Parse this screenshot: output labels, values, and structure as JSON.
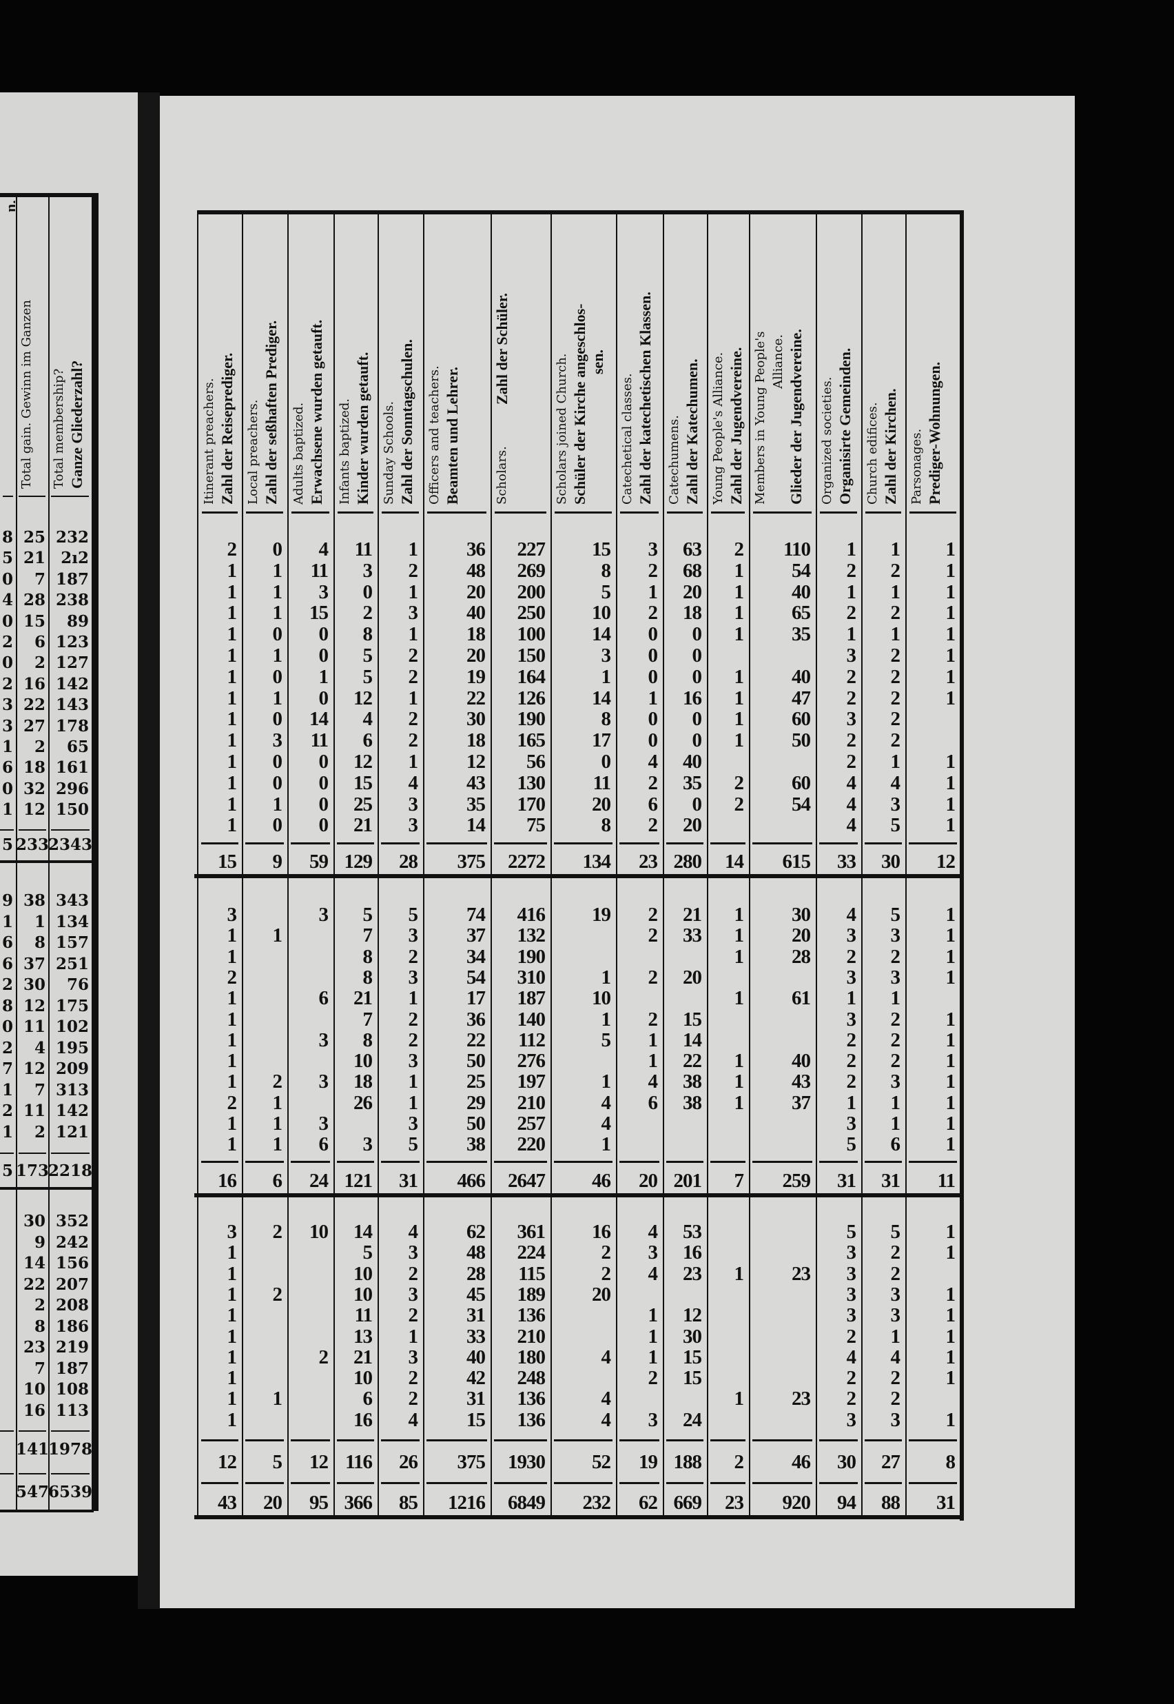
{
  "left_page": {
    "columns": [
      {
        "en": "",
        "de": "n."
      },
      {
        "en": "Total gain. Gewinn im Ganzen",
        "de": ""
      },
      {
        "en": "Total membership?",
        "de": "Ganze Gliederzahl?"
      }
    ],
    "sections": [
      {
        "rows": [
          [
            "8",
            "25",
            "232"
          ],
          [
            "5",
            "21",
            "2ı2"
          ],
          [
            "0",
            "7",
            "187"
          ],
          [
            "4",
            "28",
            "238"
          ],
          [
            "0",
            "15",
            "89"
          ],
          [
            "2",
            "6",
            "123"
          ],
          [
            "0",
            "2",
            "127"
          ],
          [
            "2",
            "16",
            "142"
          ],
          [
            "3",
            "22",
            "143"
          ],
          [
            "3",
            "27",
            "178"
          ],
          [
            "1",
            "2",
            "65"
          ],
          [
            "6",
            "18",
            "161"
          ],
          [
            "0",
            "32",
            "296"
          ],
          [
            "1",
            "12",
            "150"
          ]
        ],
        "totals": [
          [
            "5",
            "233",
            "2343"
          ]
        ]
      },
      {
        "rows": [
          [
            "9",
            "38",
            "343"
          ],
          [
            "1",
            "1",
            "134"
          ],
          [
            "6",
            "8",
            "157"
          ],
          [
            "6",
            "37",
            "251"
          ],
          [
            "2",
            "30",
            "76"
          ],
          [
            "8",
            "12",
            "175"
          ],
          [
            "0",
            "11",
            "102"
          ],
          [
            "2",
            "4",
            "195"
          ],
          [
            "7",
            "12",
            "209"
          ],
          [
            "1",
            "7",
            "313"
          ],
          [
            "2",
            "11",
            "142"
          ],
          [
            "1",
            "2",
            "121"
          ]
        ],
        "totals": [
          [
            "5",
            "173",
            "2218"
          ]
        ]
      },
      {
        "rows": [
          [
            "",
            "30",
            "352"
          ],
          [
            "",
            "9",
            "242"
          ],
          [
            "",
            "14",
            "156"
          ],
          [
            "",
            "22",
            "207"
          ],
          [
            "",
            "2",
            "208"
          ],
          [
            "",
            "8",
            "186"
          ],
          [
            "",
            "23",
            "219"
          ],
          [
            "",
            "7",
            "187"
          ],
          [
            "",
            "10",
            "108"
          ],
          [
            "",
            "16",
            "113"
          ]
        ],
        "totals": [
          [
            "",
            "141",
            "1978"
          ],
          [
            "",
            "547",
            "6539"
          ]
        ]
      }
    ]
  },
  "right_table": {
    "columns": [
      {
        "en": "Itinerant preachers.",
        "de": "Zahl der Reiseprediger."
      },
      {
        "en": "Local preachers.",
        "de": "Zahl der seßhaften Prediger."
      },
      {
        "en": "Adults baptized.",
        "de": "Erwachsene wurden getauft."
      },
      {
        "en": "Infants baptized.",
        "de": "Kinder wurden getauft."
      },
      {
        "en": "Sunday Schools.",
        "de": "Zahl der Sonntagschulen."
      },
      {
        "en": "Officers and teachers.",
        "de": "Beamten und Lehrer."
      },
      {
        "en": "Scholars.",
        "de": "Zahl der Schüler."
      },
      {
        "en": "Scholars joined Church.",
        "de": "Schüler der Kirche angeschlos-",
        "de2": "sen."
      },
      {
        "en": "Catechetical classes.",
        "de": "Zahl der katechetischen Klassen."
      },
      {
        "en": "Catechumens.",
        "de": "Zahl der Katechumen."
      },
      {
        "en": "Young People's Alliance.",
        "de": "Zahl der Jugendvereine."
      },
      {
        "en": "Members in Young People's",
        "en2": "Alliance.",
        "de": "Glieder der Jugendvereine."
      },
      {
        "en": "Organized societies.",
        "de": "Organisirte Gemeinden."
      },
      {
        "en": "Church edifices.",
        "de": "Zahl der Kirchen."
      },
      {
        "en": "Parsonages.",
        "de": "Prediger-Wohnungen."
      }
    ],
    "sections": [
      {
        "rows": [
          [
            "2",
            "0",
            "4",
            "11",
            "1",
            "36",
            "227",
            "15",
            "3",
            "63",
            "2",
            "110",
            "1",
            "1",
            "1"
          ],
          [
            "1",
            "1",
            "11",
            "3",
            "2",
            "48",
            "269",
            "8",
            "2",
            "68",
            "1",
            "54",
            "2",
            "2",
            "1"
          ],
          [
            "1",
            "1",
            "3",
            "0",
            "1",
            "20",
            "200",
            "5",
            "1",
            "20",
            "1",
            "40",
            "1",
            "1",
            "1"
          ],
          [
            "1",
            "1",
            "15",
            "2",
            "3",
            "40",
            "250",
            "10",
            "2",
            "18",
            "1",
            "65",
            "2",
            "2",
            "1"
          ],
          [
            "1",
            "0",
            "0",
            "8",
            "1",
            "18",
            "100",
            "14",
            "0",
            "0",
            "1",
            "35",
            "1",
            "1",
            "1"
          ],
          [
            "1",
            "1",
            "0",
            "5",
            "2",
            "20",
            "150",
            "3",
            "0",
            "0",
            "",
            "",
            "3",
            "2",
            "1"
          ],
          [
            "1",
            "0",
            "1",
            "5",
            "2",
            "19",
            "164",
            "1",
            "0",
            "0",
            "1",
            "40",
            "2",
            "2",
            "1"
          ],
          [
            "1",
            "1",
            "0",
            "12",
            "1",
            "22",
            "126",
            "14",
            "1",
            "16",
            "1",
            "47",
            "2",
            "2",
            "1"
          ],
          [
            "1",
            "0",
            "14",
            "4",
            "2",
            "30",
            "190",
            "8",
            "0",
            "0",
            "1",
            "60",
            "3",
            "2",
            ""
          ],
          [
            "1",
            "3",
            "11",
            "6",
            "2",
            "18",
            "165",
            "17",
            "0",
            "0",
            "1",
            "50",
            "2",
            "2",
            ""
          ],
          [
            "1",
            "0",
            "0",
            "12",
            "1",
            "12",
            "56",
            "0",
            "4",
            "40",
            "",
            "",
            "2",
            "1",
            "1"
          ],
          [
            "1",
            "0",
            "0",
            "15",
            "4",
            "43",
            "130",
            "11",
            "2",
            "35",
            "2",
            "60",
            "4",
            "4",
            "1"
          ],
          [
            "1",
            "1",
            "0",
            "25",
            "3",
            "35",
            "170",
            "20",
            "6",
            "0",
            "2",
            "54",
            "4",
            "3",
            "1"
          ],
          [
            "1",
            "0",
            "0",
            "21",
            "3",
            "14",
            "75",
            "8",
            "2",
            "20",
            "",
            "",
            "4",
            "5",
            "1"
          ]
        ],
        "totals": [
          [
            "15",
            "9",
            "59",
            "129",
            "28",
            "375",
            "2272",
            "134",
            "23",
            "280",
            "14",
            "615",
            "33",
            "30",
            "12"
          ]
        ]
      },
      {
        "rows": [
          [
            "3",
            "",
            "3",
            "5",
            "5",
            "74",
            "416",
            "19",
            "2",
            "21",
            "1",
            "30",
            "4",
            "5",
            "1"
          ],
          [
            "1",
            "1",
            "",
            "7",
            "3",
            "37",
            "132",
            "",
            "2",
            "33",
            "1",
            "20",
            "3",
            "3",
            "1"
          ],
          [
            "1",
            "",
            "",
            "8",
            "2",
            "34",
            "190",
            "",
            "",
            "",
            "1",
            "28",
            "2",
            "2",
            "1"
          ],
          [
            "2",
            "",
            "",
            "8",
            "3",
            "54",
            "310",
            "1",
            "2",
            "20",
            "",
            "",
            "3",
            "3",
            "1"
          ],
          [
            "1",
            "",
            "6",
            "21",
            "1",
            "17",
            "187",
            "10",
            "",
            "",
            "1",
            "61",
            "1",
            "1",
            ""
          ],
          [
            "1",
            "",
            "",
            "7",
            "2",
            "36",
            "140",
            "1",
            "2",
            "15",
            "",
            "",
            "3",
            "2",
            "1"
          ],
          [
            "1",
            "",
            "3",
            "8",
            "2",
            "22",
            "112",
            "5",
            "1",
            "14",
            "",
            "",
            "2",
            "2",
            "1"
          ],
          [
            "1",
            "",
            "",
            "10",
            "3",
            "50",
            "276",
            "",
            "1",
            "22",
            "1",
            "40",
            "2",
            "2",
            "1"
          ],
          [
            "1",
            "2",
            "3",
            "18",
            "1",
            "25",
            "197",
            "1",
            "4",
            "38",
            "1",
            "43",
            "2",
            "3",
            "1"
          ],
          [
            "2",
            "1",
            "",
            "26",
            "1",
            "29",
            "210",
            "4",
            "6",
            "38",
            "1",
            "37",
            "1",
            "1",
            "1"
          ],
          [
            "1",
            "1",
            "3",
            "",
            "3",
            "50",
            "257",
            "4",
            "",
            "",
            "",
            "",
            "3",
            "1",
            "1"
          ],
          [
            "1",
            "1",
            "6",
            "3",
            "5",
            "38",
            "220",
            "1",
            "",
            "",
            "",
            "",
            "5",
            "6",
            "1"
          ]
        ],
        "totals": [
          [
            "16",
            "6",
            "24",
            "121",
            "31",
            "466",
            "2647",
            "46",
            "20",
            "201",
            "7",
            "259",
            "31",
            "31",
            "11"
          ]
        ]
      },
      {
        "rows": [
          [
            "3",
            "2",
            "10",
            "14",
            "4",
            "62",
            "361",
            "16",
            "4",
            "53",
            "",
            "",
            "5",
            "5",
            "1"
          ],
          [
            "1",
            "",
            "",
            "5",
            "3",
            "48",
            "224",
            "2",
            "3",
            "16",
            "",
            "",
            "3",
            "2",
            "1"
          ],
          [
            "1",
            "",
            "",
            "10",
            "2",
            "28",
            "115",
            "2",
            "4",
            "23",
            "1",
            "23",
            "3",
            "2",
            ""
          ],
          [
            "1",
            "2",
            "",
            "10",
            "3",
            "45",
            "189",
            "20",
            "",
            "",
            "",
            "",
            "3",
            "3",
            "1"
          ],
          [
            "1",
            "",
            "",
            "11",
            "2",
            "31",
            "136",
            "",
            "1",
            "12",
            "",
            "",
            "3",
            "3",
            "1"
          ],
          [
            "1",
            "",
            "",
            "13",
            "1",
            "33",
            "210",
            "",
            "1",
            "30",
            "",
            "",
            "2",
            "1",
            "1"
          ],
          [
            "1",
            "",
            "2",
            "21",
            "3",
            "40",
            "180",
            "4",
            "1",
            "15",
            "",
            "",
            "4",
            "4",
            "1"
          ],
          [
            "1",
            "",
            "",
            "10",
            "2",
            "42",
            "248",
            "",
            "2",
            "15",
            "",
            "",
            "2",
            "2",
            "1"
          ],
          [
            "1",
            "1",
            "",
            "6",
            "2",
            "31",
            "136",
            "4",
            "",
            "",
            "1",
            "23",
            "2",
            "2",
            ""
          ],
          [
            "1",
            "",
            "",
            "16",
            "4",
            "15",
            "136",
            "4",
            "3",
            "24",
            "",
            "",
            "3",
            "3",
            "1"
          ]
        ],
        "totals": [
          [
            "12",
            "5",
            "12",
            "116",
            "26",
            "375",
            "1930",
            "52",
            "19",
            "188",
            "2",
            "46",
            "30",
            "27",
            "8"
          ],
          [
            "43",
            "20",
            "95",
            "366",
            "85",
            "1216",
            "6849",
            "232",
            "62",
            "669",
            "23",
            "920",
            "94",
            "88",
            "31"
          ]
        ]
      }
    ]
  },
  "colors": {
    "paper": "#d9d9d7",
    "ink": "#111111",
    "background": "#050505"
  }
}
